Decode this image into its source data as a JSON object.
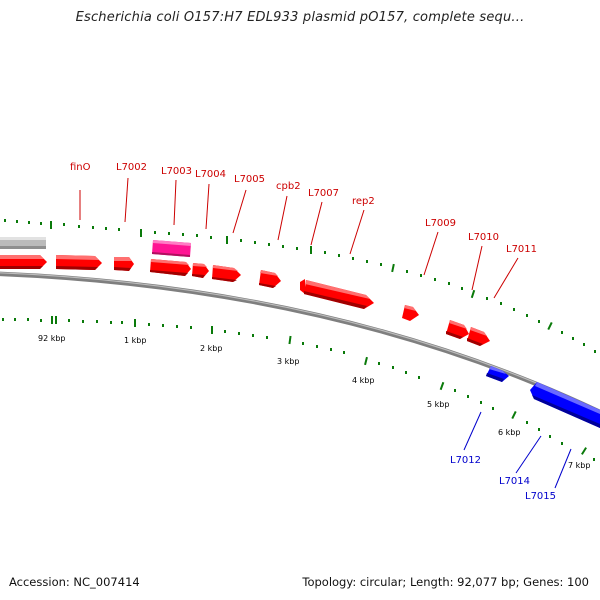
{
  "title": "Escherichia coli O157:H7 EDL933 plasmid pO157, complete sequ...",
  "footer": {
    "accession_label": "Accession: NC_007414",
    "stats_label": "Topology: circular; Length: 92,077 bp; Genes: 100"
  },
  "colors": {
    "forward_gene": "#ff0000",
    "reverse_gene": "#0000ff",
    "pink_feature": "#ff1493",
    "gray_feature": "#bbbbbb",
    "backbone": "#888888",
    "ticks": "#006400",
    "forward_label": "#cc0000",
    "reverse_label": "#0000cc"
  },
  "ruler": {
    "labels": [
      "92 kbp",
      "1 kbp",
      "2 kbp",
      "3 kbp",
      "4 kbp",
      "5 kbp",
      "6 kbp",
      "7 kbp"
    ]
  },
  "gene_labels": [
    {
      "text": "finO",
      "strand": "forward"
    },
    {
      "text": "L7002",
      "strand": "forward"
    },
    {
      "text": "L7003",
      "strand": "forward"
    },
    {
      "text": "L7004",
      "strand": "forward"
    },
    {
      "text": "L7005",
      "strand": "forward"
    },
    {
      "text": "cpb2",
      "strand": "forward"
    },
    {
      "text": "L7007",
      "strand": "forward"
    },
    {
      "text": "rep2",
      "strand": "forward"
    },
    {
      "text": "L7009",
      "strand": "forward"
    },
    {
      "text": "L7010",
      "strand": "forward"
    },
    {
      "text": "L7011",
      "strand": "forward"
    },
    {
      "text": "L7012",
      "strand": "reverse"
    },
    {
      "text": "L7014",
      "strand": "reverse"
    },
    {
      "text": "L7015",
      "strand": "reverse"
    }
  ]
}
